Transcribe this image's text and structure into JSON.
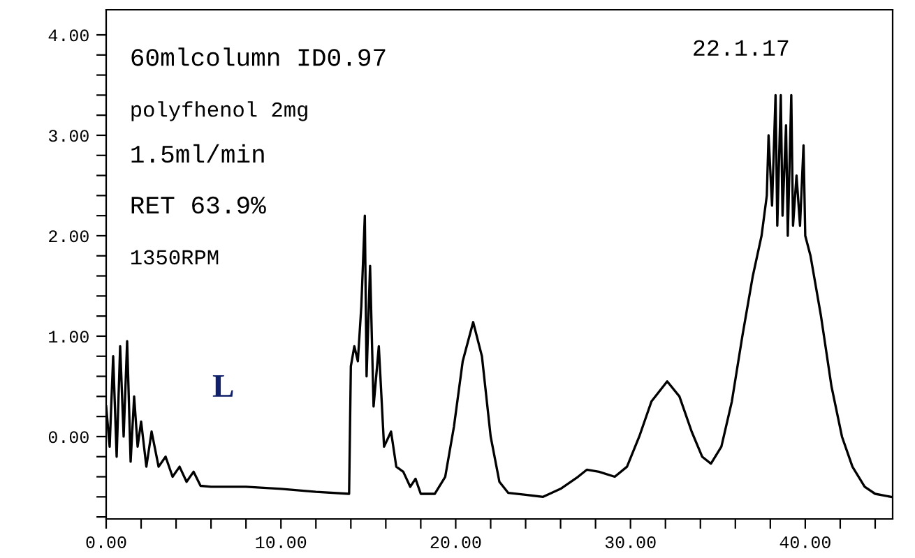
{
  "chart_data": {
    "type": "line",
    "annotations": [
      "60mlcolumn ID0.97",
      "polyfhenol 2mg",
      "1.5ml/min",
      "RET 63.9%",
      "1350RPM",
      "L",
      "22.1.17"
    ],
    "xlim": [
      0,
      45
    ],
    "ylim": [
      -0.82,
      4.25
    ],
    "xticks": [
      {
        "value": 0,
        "label": "0.00"
      },
      {
        "value": 2,
        "label": null
      },
      {
        "value": 4,
        "label": null
      },
      {
        "value": 6,
        "label": null
      },
      {
        "value": 8,
        "label": null
      },
      {
        "value": 10,
        "label": "10.00"
      },
      {
        "value": 12,
        "label": null
      },
      {
        "value": 14,
        "label": null
      },
      {
        "value": 16,
        "label": null
      },
      {
        "value": 18,
        "label": null
      },
      {
        "value": 20,
        "label": "20.00"
      },
      {
        "value": 22,
        "label": null
      },
      {
        "value": 24,
        "label": null
      },
      {
        "value": 26,
        "label": null
      },
      {
        "value": 28,
        "label": null
      },
      {
        "value": 30,
        "label": "30.00"
      },
      {
        "value": 32,
        "label": null
      },
      {
        "value": 34,
        "label": null
      },
      {
        "value": 36,
        "label": null
      },
      {
        "value": 38,
        "label": null
      },
      {
        "value": 40,
        "label": "40.00"
      },
      {
        "value": 42,
        "label": null
      },
      {
        "value": 44,
        "label": null
      }
    ],
    "yticks": [
      {
        "value": -0.8,
        "label": null
      },
      {
        "value": -0.6,
        "label": null
      },
      {
        "value": -0.4,
        "label": null
      },
      {
        "value": -0.2,
        "label": null
      },
      {
        "value": 0,
        "label": "0.00"
      },
      {
        "value": 0.2,
        "label": null
      },
      {
        "value": 0.4,
        "label": null
      },
      {
        "value": 0.6,
        "label": null
      },
      {
        "value": 0.8,
        "label": null
      },
      {
        "value": 1,
        "label": "1.00"
      },
      {
        "value": 1.2,
        "label": null
      },
      {
        "value": 1.4,
        "label": null
      },
      {
        "value": 1.6,
        "label": null
      },
      {
        "value": 1.8,
        "label": null
      },
      {
        "value": 2,
        "label": "2.00"
      },
      {
        "value": 2.2,
        "label": null
      },
      {
        "value": 2.4,
        "label": null
      },
      {
        "value": 2.6,
        "label": null
      },
      {
        "value": 2.8,
        "label": null
      },
      {
        "value": 3,
        "label": "3.00"
      },
      {
        "value": 3.2,
        "label": null
      },
      {
        "value": 3.4,
        "label": null
      },
      {
        "value": 3.6,
        "label": null
      },
      {
        "value": 3.8,
        "label": null
      },
      {
        "value": 4,
        "label": "4.00"
      }
    ],
    "grid": false,
    "legend": false,
    "series": [
      {
        "color": "#000000",
        "x": [
          0,
          0.2,
          0.4,
          0.6,
          0.8,
          1.0,
          1.2,
          1.4,
          1.6,
          1.8,
          2.0,
          2.3,
          2.6,
          3.0,
          3.4,
          3.8,
          4.2,
          4.6,
          5.0,
          5.4,
          6,
          8,
          10,
          12,
          13.9,
          14.0,
          14.2,
          14.4,
          14.6,
          14.8,
          14.9,
          15.1,
          15.3,
          15.6,
          15.9,
          16.3,
          16.6,
          17.0,
          17.4,
          17.7,
          18.0,
          18.8,
          19.4,
          19.9,
          20.4,
          21.0,
          21.5,
          22.0,
          22.5,
          23.0,
          24,
          25,
          26,
          27,
          27.5,
          28.2,
          29.1,
          29.8,
          30.5,
          31.2,
          32.1,
          32.8,
          33.5,
          34.1,
          34.6,
          35.2,
          35.8,
          36.4,
          37.0,
          37.5,
          37.8,
          37.9,
          38.1,
          38.3,
          38.4,
          38.6,
          38.7,
          38.9,
          39.0,
          39.2,
          39.3,
          39.5,
          39.7,
          39.9,
          40.0,
          40.3,
          40.9,
          41.5,
          42.1,
          42.7,
          43.4,
          44.0,
          44.9
        ],
        "values": [
          0.3,
          -0.1,
          0.8,
          -0.2,
          0.9,
          0.0,
          0.95,
          -0.25,
          0.4,
          -0.1,
          0.15,
          -0.3,
          0.05,
          -0.3,
          -0.2,
          -0.4,
          -0.3,
          -0.45,
          -0.35,
          -0.49,
          -0.5,
          -0.5,
          -0.52,
          -0.55,
          -0.57,
          0.7,
          0.9,
          0.75,
          1.3,
          2.2,
          0.6,
          1.7,
          0.3,
          0.9,
          -0.1,
          0.05,
          -0.3,
          -0.35,
          -0.5,
          -0.42,
          -0.57,
          -0.57,
          -0.4,
          0.1,
          0.75,
          1.14,
          0.8,
          0.0,
          -0.45,
          -0.56,
          -0.58,
          -0.6,
          -0.52,
          -0.4,
          -0.33,
          -0.35,
          -0.4,
          -0.3,
          0.0,
          0.35,
          0.55,
          0.4,
          0.05,
          -0.2,
          -0.27,
          -0.1,
          0.35,
          1.0,
          1.6,
          2.0,
          2.4,
          3.0,
          2.3,
          3.4,
          2.1,
          3.4,
          2.2,
          3.1,
          2.0,
          3.4,
          2.1,
          2.6,
          2.1,
          2.9,
          2.0,
          1.8,
          1.2,
          0.5,
          0.0,
          -0.3,
          -0.5,
          -0.57,
          -0.6
        ]
      }
    ]
  }
}
